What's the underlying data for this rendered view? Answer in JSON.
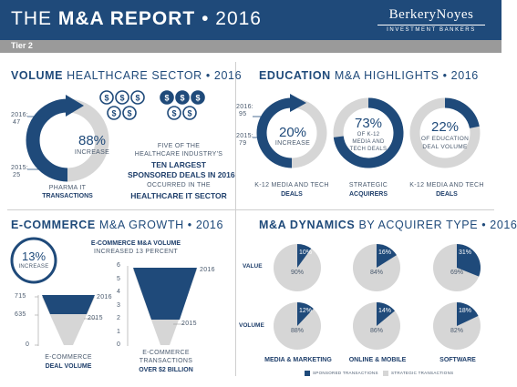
{
  "header": {
    "title_prefix": "THE",
    "title_bold": "M&A REPORT",
    "title_suffix": "• 2016",
    "logo_name": "BerkeryNoyes",
    "logo_tagline": "INVESTMENT BANKERS"
  },
  "tier": "Tier 2",
  "colors": {
    "navy": "#1f4a7a",
    "light_gray": "#d6d6d6",
    "gray": "#9a9a9a"
  },
  "healthcare": {
    "title_bold": "VOLUME",
    "title_rest": "HEALTHCARE SECTOR • 2016",
    "label_2016": "2016:",
    "value_2016": "47",
    "label_2015": "2015:",
    "value_2015": "25",
    "percent": "88%",
    "change": "INCREASE",
    "category_line1": "PHARMA IT",
    "category_line2": "TRANSACTIONS",
    "icon": "dollar-coin-icon",
    "text_line1": "FIVE OF THE",
    "text_line2": "HEALTHCARE INDUSTRY'S",
    "text_bold1": "TEN LARGEST",
    "text_bold2": "SPONSORED DEALS IN 2016",
    "text_line3": "OCCURRED IN THE",
    "text_bold3": "HEALTHCARE IT SECTOR"
  },
  "education": {
    "title_bold": "EDUCATION",
    "title_rest": "M&A HIGHLIGHTS • 2016",
    "label_2016": "2016:",
    "value_2016": "95",
    "label_2015": "2015:",
    "value_2015": "79",
    "stat1_percent": "20%",
    "stat1_change": "INCREASE",
    "stat1_label1": "K-12 MEDIA AND TECH",
    "stat1_label2": "DEALS",
    "stat2_percent": "73%",
    "stat2_line1": "OF K-12",
    "stat2_line2": "MEDIA AND",
    "stat2_line3": "TECH DEALS",
    "stat2_label1": "STRATEGIC",
    "stat2_label2": "ACQUIRERS",
    "stat2_fraction": 0.73,
    "stat3_percent": "22%",
    "stat3_line1": "OF EDUCATION",
    "stat3_line2": "DEAL VOLUME",
    "stat3_label1": "K-12 MEDIA AND TECH",
    "stat3_label2": "DEALS",
    "stat3_fraction": 0.22
  },
  "ecommerce": {
    "title_bold": "E-COMMERCE",
    "title_rest": "M&A GROWTH • 2016",
    "badge_percent": "13%",
    "badge_change": "INCREASE",
    "headline": "E-COMMERCE  M&A VOLUME",
    "subheadline": "INCREASED 13 PERCENT",
    "volume_ticks": [
      "715",
      "635",
      "0"
    ],
    "volume_2016": "2016",
    "volume_2015": "2015",
    "volume_label1": "E-COMMERCE",
    "volume_label2": "DEAL VOLUME",
    "value_ticks": [
      "6",
      "5",
      "4",
      "3",
      "2",
      "1",
      "0"
    ],
    "value_2016": "2016",
    "value_2015": "2015",
    "value_label1": "E-COMMERCE",
    "value_label2": "TRANSACTIONS",
    "value_label3": "OVER $2 BILLION"
  },
  "dynamics": {
    "title_bold": "M&A DYNAMICS",
    "title_rest": "BY ACQUIRER TYPE • 2016",
    "row_value": "VALUE",
    "row_volume": "VOLUME",
    "categories": [
      "MEDIA & MARKETING",
      "ONLINE & MOBILE",
      "SOFTWARE"
    ],
    "legend_sponsored": "SPONSORED TRANSACTIONS",
    "legend_strategic": "STRATEGIC TRANSACTIONS",
    "value_pies": [
      {
        "sponsored": "10%",
        "strategic": "90%",
        "fraction": 0.1
      },
      {
        "sponsored": "16%",
        "strategic": "84%",
        "fraction": 0.16
      },
      {
        "sponsored": "31%",
        "strategic": "69%",
        "fraction": 0.31
      }
    ],
    "volume_pies": [
      {
        "sponsored": "12%",
        "strategic": "88%",
        "fraction": 0.12
      },
      {
        "sponsored": "14%",
        "strategic": "86%",
        "fraction": 0.14
      },
      {
        "sponsored": "18%",
        "strategic": "82%",
        "fraction": 0.18
      }
    ]
  }
}
